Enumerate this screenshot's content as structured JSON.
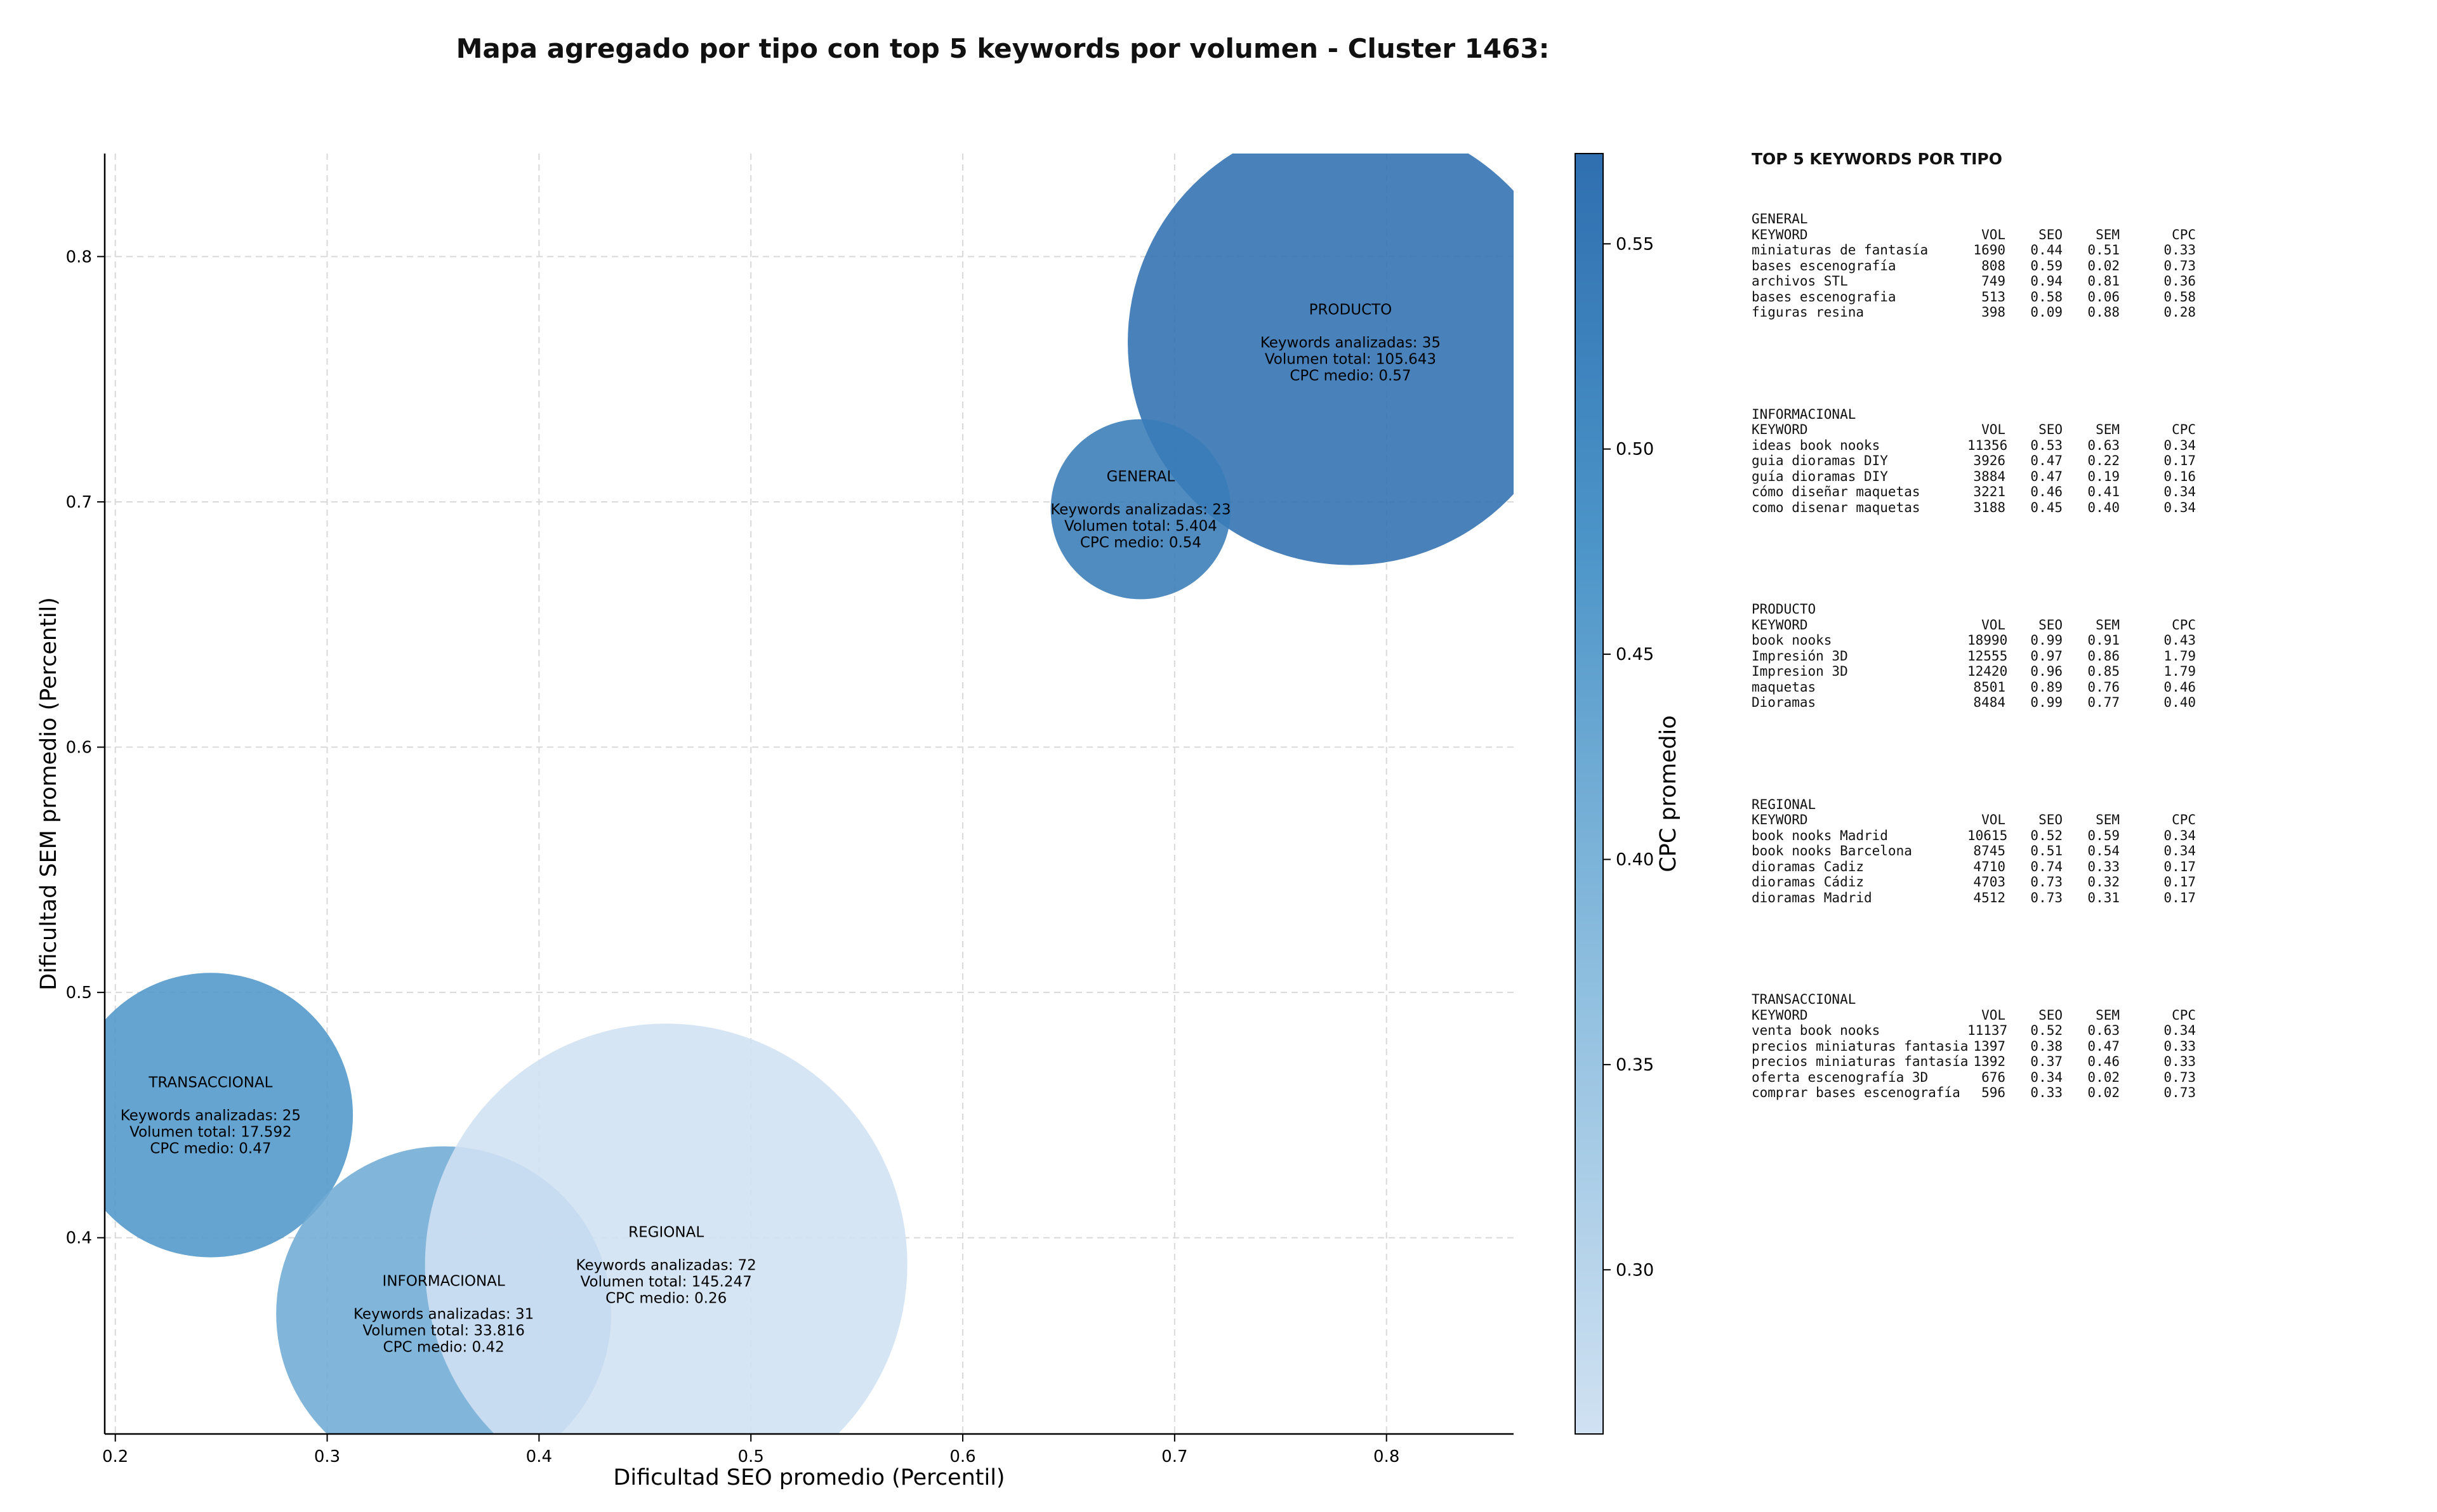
{
  "title": "Mapa agregado por tipo con top 5 keywords por volumen - Cluster 1463:",
  "colors": {
    "colormap_low": "#d0e1f2",
    "colormap_high": "#2f6fb0",
    "axis": "#000000",
    "grid": "#d9d9d9"
  },
  "chart_data": {
    "type": "scatter",
    "xlabel": "Dificultad SEO promedio (Percentil)",
    "ylabel": "Dificultad SEM promedio (Percentil)",
    "xlim": [
      0.195,
      0.86
    ],
    "ylim": [
      0.32,
      0.842
    ],
    "xticks": [
      0.2,
      0.3,
      0.4,
      0.5,
      0.6,
      0.7,
      0.8
    ],
    "yticks": [
      0.4,
      0.5,
      0.6,
      0.7,
      0.8
    ],
    "grid": true,
    "colorbar": {
      "label": "CPC promedio",
      "range": [
        0.26,
        0.572
      ],
      "ticks": [
        0.3,
        0.35,
        0.4,
        0.45,
        0.5,
        0.55
      ]
    },
    "points": [
      {
        "label": "PRODUCTO",
        "x": 0.783,
        "y": 0.765,
        "keywords_line": "Keywords analizadas: 35",
        "volume_line": "Volumen total: 105.643",
        "cpc_line": "CPC medio: 0.57",
        "volume": 105643,
        "cpc": 0.57
      },
      {
        "label": "GENERAL",
        "x": 0.684,
        "y": 0.697,
        "keywords_line": "Keywords analizadas: 23",
        "volume_line": "Volumen total: 5.404",
        "cpc_line": "CPC medio: 0.54",
        "volume": 5404,
        "cpc": 0.54
      },
      {
        "label": "TRANSACCIONAL",
        "x": 0.245,
        "y": 0.45,
        "keywords_line": "Keywords analizadas: 25",
        "volume_line": "Volumen total: 17.592",
        "cpc_line": "CPC medio: 0.47",
        "volume": 17592,
        "cpc": 0.47
      },
      {
        "label": "INFORMACIONAL",
        "x": 0.355,
        "y": 0.369,
        "keywords_line": "Keywords analizadas: 31",
        "volume_line": "Volumen total: 33.816",
        "cpc_line": "CPC medio: 0.42",
        "volume": 33816,
        "cpc": 0.42
      },
      {
        "label": "REGIONAL",
        "x": 0.46,
        "y": 0.389,
        "keywords_line": "Keywords analizadas: 72",
        "volume_line": "Volumen total: 145.247",
        "cpc_line": "CPC medio: 0.26",
        "volume": 145247,
        "cpc": 0.26
      }
    ]
  },
  "side_panel": {
    "title": "TOP 5 KEYWORDS POR TIPO",
    "sections": [
      {
        "name": "GENERAL",
        "header": {
          "keyword": "KEYWORD",
          "vol": "VOL",
          "seo": "SEO",
          "sem": "SEM",
          "cpc": "CPC"
        },
        "rows": [
          {
            "keyword": "miniaturas de fantasía",
            "vol": "1690",
            "seo": "0.44",
            "sem": "0.51",
            "cpc": "0.33"
          },
          {
            "keyword": "bases escenografía",
            "vol": "808",
            "seo": "0.59",
            "sem": "0.02",
            "cpc": "0.73"
          },
          {
            "keyword": "archivos STL",
            "vol": "749",
            "seo": "0.94",
            "sem": "0.81",
            "cpc": "0.36"
          },
          {
            "keyword": "bases escenografia",
            "vol": "513",
            "seo": "0.58",
            "sem": "0.06",
            "cpc": "0.58"
          },
          {
            "keyword": "figuras resina",
            "vol": "398",
            "seo": "0.09",
            "sem": "0.88",
            "cpc": "0.28"
          }
        ]
      },
      {
        "name": "INFORMACIONAL",
        "header": {
          "keyword": "KEYWORD",
          "vol": "VOL",
          "seo": "SEO",
          "sem": "SEM",
          "cpc": "CPC"
        },
        "rows": [
          {
            "keyword": "ideas book nooks",
            "vol": "11356",
            "seo": "0.53",
            "sem": "0.63",
            "cpc": "0.34"
          },
          {
            "keyword": "guia dioramas DIY",
            "vol": "3926",
            "seo": "0.47",
            "sem": "0.22",
            "cpc": "0.17"
          },
          {
            "keyword": "guía dioramas DIY",
            "vol": "3884",
            "seo": "0.47",
            "sem": "0.19",
            "cpc": "0.16"
          },
          {
            "keyword": "cómo diseñar maquetas",
            "vol": "3221",
            "seo": "0.46",
            "sem": "0.41",
            "cpc": "0.34"
          },
          {
            "keyword": "como disenar maquetas",
            "vol": "3188",
            "seo": "0.45",
            "sem": "0.40",
            "cpc": "0.34"
          }
        ]
      },
      {
        "name": "PRODUCTO",
        "header": {
          "keyword": "KEYWORD",
          "vol": "VOL",
          "seo": "SEO",
          "sem": "SEM",
          "cpc": "CPC"
        },
        "rows": [
          {
            "keyword": "book nooks",
            "vol": "18990",
            "seo": "0.99",
            "sem": "0.91",
            "cpc": "0.43"
          },
          {
            "keyword": "Impresión 3D",
            "vol": "12555",
            "seo": "0.97",
            "sem": "0.86",
            "cpc": "1.79"
          },
          {
            "keyword": "Impresion 3D",
            "vol": "12420",
            "seo": "0.96",
            "sem": "0.85",
            "cpc": "1.79"
          },
          {
            "keyword": "maquetas",
            "vol": "8501",
            "seo": "0.89",
            "sem": "0.76",
            "cpc": "0.46"
          },
          {
            "keyword": "Dioramas",
            "vol": "8484",
            "seo": "0.99",
            "sem": "0.77",
            "cpc": "0.40"
          }
        ]
      },
      {
        "name": "REGIONAL",
        "header": {
          "keyword": "KEYWORD",
          "vol": "VOL",
          "seo": "SEO",
          "sem": "SEM",
          "cpc": "CPC"
        },
        "rows": [
          {
            "keyword": "book nooks Madrid",
            "vol": "10615",
            "seo": "0.52",
            "sem": "0.59",
            "cpc": "0.34"
          },
          {
            "keyword": "book nooks Barcelona",
            "vol": "8745",
            "seo": "0.51",
            "sem": "0.54",
            "cpc": "0.34"
          },
          {
            "keyword": "dioramas Cadiz",
            "vol": "4710",
            "seo": "0.74",
            "sem": "0.33",
            "cpc": "0.17"
          },
          {
            "keyword": "dioramas Cádiz",
            "vol": "4703",
            "seo": "0.73",
            "sem": "0.32",
            "cpc": "0.17"
          },
          {
            "keyword": "dioramas Madrid",
            "vol": "4512",
            "seo": "0.73",
            "sem": "0.31",
            "cpc": "0.17"
          }
        ]
      },
      {
        "name": "TRANSACCIONAL",
        "header": {
          "keyword": "KEYWORD",
          "vol": "VOL",
          "seo": "SEO",
          "sem": "SEM",
          "cpc": "CPC"
        },
        "rows": [
          {
            "keyword": "venta book nooks",
            "vol": "11137",
            "seo": "0.52",
            "sem": "0.63",
            "cpc": "0.34"
          },
          {
            "keyword": "precios miniaturas fantasia",
            "vol": "1397",
            "seo": "0.38",
            "sem": "0.47",
            "cpc": "0.33"
          },
          {
            "keyword": "precios miniaturas fantasía",
            "vol": "1392",
            "seo": "0.37",
            "sem": "0.46",
            "cpc": "0.33"
          },
          {
            "keyword": "oferta escenografía 3D",
            "vol": "676",
            "seo": "0.34",
            "sem": "0.02",
            "cpc": "0.73"
          },
          {
            "keyword": "comprar bases escenografía",
            "vol": "596",
            "seo": "0.33",
            "sem": "0.02",
            "cpc": "0.73"
          }
        ]
      }
    ]
  }
}
